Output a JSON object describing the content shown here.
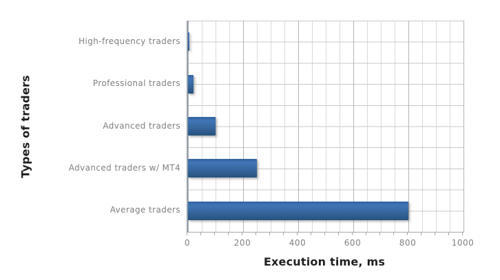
{
  "chart_data": {
    "type": "bar",
    "orientation": "horizontal",
    "categories": [
      "High-frequency traders",
      "Professional traders",
      "Advanced traders",
      "Advanced traders w/ MT4",
      "Average traders"
    ],
    "values": [
      5,
      20,
      100,
      250,
      800
    ],
    "xlabel": "Execution time, ms",
    "ylabel": "Types of traders",
    "xlim": [
      0,
      1000
    ],
    "x_ticks": [
      0,
      200,
      400,
      600,
      800,
      1000
    ],
    "minor_grid_step_ms": 50,
    "major_grid_step_ms": 200,
    "grid": "on",
    "legend": "none",
    "bar_color": "#2f62a0",
    "bar_gradient_top": "#4076b6",
    "bar_gradient_bottom": "#27527f",
    "category_label_color": "#7f7f7f",
    "tick_label_color": "#7f7f7f",
    "axis_title_color": "#1f1f1f",
    "gridline_minor_color": "#d9d9d9",
    "gridline_major_color": "#b3b3b3",
    "background_color": "#ffffff"
  }
}
